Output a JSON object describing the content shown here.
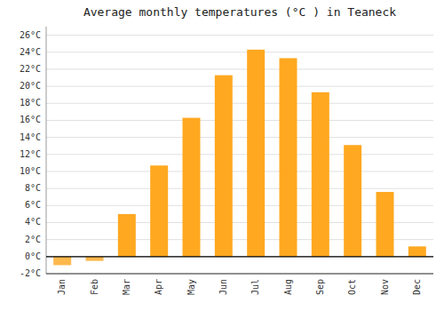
{
  "chart_data": {
    "type": "bar",
    "title": "Average monthly temperatures (°C ) in Teaneck",
    "categories": [
      "Jan",
      "Feb",
      "Mar",
      "Apr",
      "May",
      "Jun",
      "Jul",
      "Aug",
      "Sep",
      "Oct",
      "Nov",
      "Dec"
    ],
    "values": [
      -1.0,
      -0.5,
      5.0,
      10.7,
      16.3,
      21.3,
      24.3,
      23.3,
      19.3,
      13.1,
      7.6,
      1.2
    ],
    "colors": [
      "#FFB84D",
      "#FFB84D",
      "#FFA820",
      "#FFA820",
      "#FFA820",
      "#FFA820",
      "#FFA820",
      "#FFA820",
      "#FFA820",
      "#FFA820",
      "#FFA820",
      "#FFA820"
    ],
    "ylim": [
      -2,
      27
    ],
    "yticks": [
      {
        "value": -2,
        "label": "-2°C"
      },
      {
        "value": 0,
        "label": "0°C"
      },
      {
        "value": 2,
        "label": "2°C"
      },
      {
        "value": 4,
        "label": "4°C"
      },
      {
        "value": 6,
        "label": "6°C"
      },
      {
        "value": 8,
        "label": "8°C"
      },
      {
        "value": 10,
        "label": "10°C"
      },
      {
        "value": 12,
        "label": "12°C"
      },
      {
        "value": 14,
        "label": "14°C"
      },
      {
        "value": 16,
        "label": "16°C"
      },
      {
        "value": 18,
        "label": "18°C"
      },
      {
        "value": 20,
        "label": "20°C"
      },
      {
        "value": 22,
        "label": "22°C"
      },
      {
        "value": 24,
        "label": "24°C"
      },
      {
        "value": 26,
        "label": "26°C"
      }
    ],
    "grid": true
  }
}
